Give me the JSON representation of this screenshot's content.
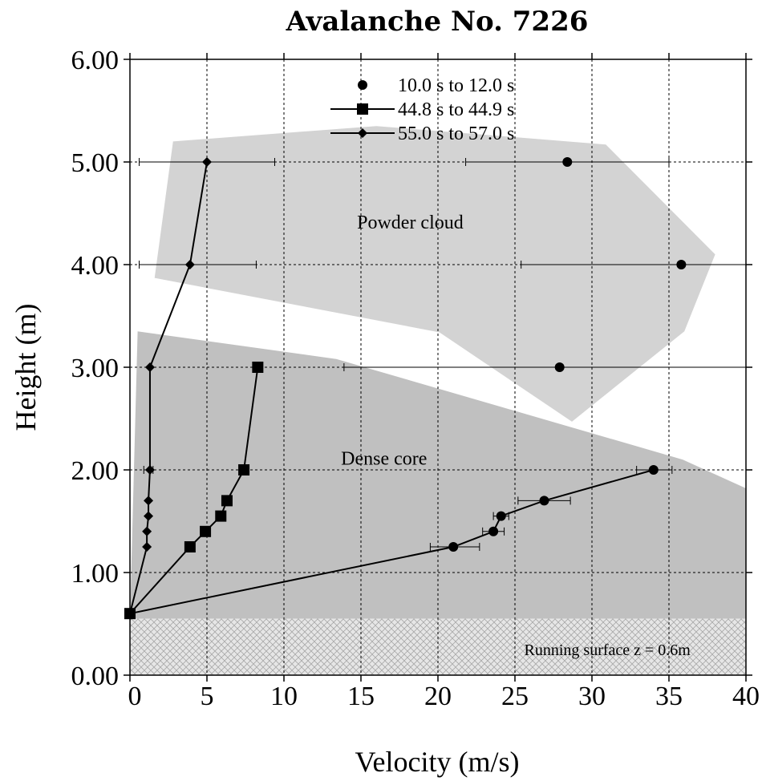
{
  "chart_data": {
    "type": "scatter",
    "title": "Avalanche No. 7226",
    "xlabel": "Velocity (m/s)",
    "ylabel": "Height (m)",
    "xlim": [
      0,
      40
    ],
    "ylim": [
      0,
      6
    ],
    "xticks": [
      "0",
      "5",
      "10",
      "15",
      "20",
      "25",
      "30",
      "35",
      "40"
    ],
    "yticks": [
      "0.00",
      "1.00",
      "2.00",
      "3.00",
      "4.00",
      "5.00",
      "6.00"
    ],
    "grid": true,
    "legend_position": "top-center",
    "series": [
      {
        "name": "10.0 s to 12.0 s",
        "marker": "circle",
        "line": "partial",
        "points": [
          {
            "x": 28.4,
            "y": 5.0,
            "xerr": [
              21.8,
              35.0
            ]
          },
          {
            "x": 35.8,
            "y": 4.0,
            "xerr": [
              25.4,
              40
            ]
          },
          {
            "x": 27.9,
            "y": 3.0,
            "xerr": [
              13.9,
              40
            ]
          },
          {
            "x": 34.0,
            "y": 2.0,
            "xerr": [
              32.9,
              35.2
            ]
          },
          {
            "x": 26.9,
            "y": 1.7,
            "xerr": [
              25.2,
              28.6
            ]
          },
          {
            "x": 24.1,
            "y": 1.55,
            "xerr": [
              23.6,
              24.6
            ]
          },
          {
            "x": 23.6,
            "y": 1.4,
            "xerr": [
              22.9,
              24.3
            ]
          },
          {
            "x": 21.0,
            "y": 1.25,
            "xerr": [
              19.5,
              22.7
            ]
          },
          {
            "x": 0.0,
            "y": 0.6
          }
        ]
      },
      {
        "name": "44.8 s to 44.9 s",
        "marker": "square",
        "points": [
          {
            "x": 8.3,
            "y": 3.0
          },
          {
            "x": 7.4,
            "y": 2.0
          },
          {
            "x": 6.3,
            "y": 1.7
          },
          {
            "x": 5.9,
            "y": 1.55
          },
          {
            "x": 4.9,
            "y": 1.4
          },
          {
            "x": 3.9,
            "y": 1.25
          },
          {
            "x": 0.0,
            "y": 0.6
          }
        ]
      },
      {
        "name": "55.0 s to 57.0 s",
        "marker": "diamond",
        "points": [
          {
            "x": 5.0,
            "y": 5.0,
            "xerr": [
              0.6,
              9.4
            ]
          },
          {
            "x": 3.9,
            "y": 4.0,
            "xerr": [
              0.6,
              8.2
            ]
          },
          {
            "x": 1.3,
            "y": 3.0
          },
          {
            "x": 1.3,
            "y": 2.0,
            "xerr": [
              0.9,
              1.5
            ]
          },
          {
            "x": 1.2,
            "y": 1.7
          },
          {
            "x": 1.2,
            "y": 1.55
          },
          {
            "x": 1.1,
            "y": 1.4
          },
          {
            "x": 1.1,
            "y": 1.25
          },
          {
            "x": 0.0,
            "y": 0.6
          }
        ]
      }
    ],
    "regions": [
      {
        "label": "Powder cloud",
        "label_at": [
          18.2,
          4.35
        ],
        "color": "#d3d3d3",
        "polygon": [
          [
            2.8,
            5.2
          ],
          [
            16.0,
            5.35
          ],
          [
            30.9,
            5.17
          ],
          [
            38.0,
            4.1
          ],
          [
            36.0,
            3.35
          ],
          [
            28.7,
            2.47
          ],
          [
            20.1,
            3.34
          ],
          [
            1.6,
            3.87
          ]
        ]
      },
      {
        "label": "Dense core",
        "label_at": [
          16.5,
          2.05
        ],
        "color": "#c0c0c0",
        "polygon": [
          [
            0.5,
            3.35
          ],
          [
            13.4,
            3.08
          ],
          [
            35.9,
            2.1
          ],
          [
            40.0,
            1.82
          ],
          [
            40.0,
            0.55
          ],
          [
            0.0,
            0.55
          ]
        ]
      }
    ],
    "surface": {
      "label": "Running surface z = 0.6m",
      "y_top": 0.55,
      "label_at": [
        31.0,
        0.25
      ]
    }
  }
}
